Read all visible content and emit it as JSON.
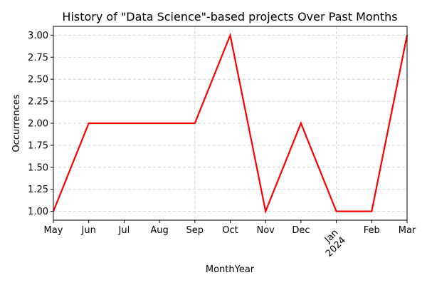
{
  "chart_data": {
    "type": "line",
    "title": "History of \"Data Science\"-based projects Over Past Months",
    "xlabel": "MonthYear",
    "ylabel": "Occurrences",
    "x": [
      "May",
      "Jun",
      "Jul",
      "Aug",
      "Sep",
      "Oct",
      "Nov",
      "Dec",
      "Jan 2024",
      "Feb",
      "Mar"
    ],
    "x_tick_labels": [
      {
        "lines": [
          "May"
        ]
      },
      {
        "lines": [
          "Jun"
        ]
      },
      {
        "lines": [
          "Jul"
        ]
      },
      {
        "lines": [
          "Aug"
        ]
      },
      {
        "lines": [
          "Sep"
        ]
      },
      {
        "lines": [
          "Oct"
        ]
      },
      {
        "lines": [
          "Nov"
        ]
      },
      {
        "lines": [
          "Dec"
        ]
      },
      {
        "lines": [
          "Jan",
          "2024"
        ],
        "rotated": true
      },
      {
        "lines": [
          "Feb"
        ]
      },
      {
        "lines": [
          "Mar"
        ]
      }
    ],
    "series": [
      {
        "values": [
          1,
          2,
          2,
          2,
          2,
          3,
          1,
          2,
          1,
          1,
          3
        ],
        "color": "#ff0000"
      }
    ],
    "ylim": [
      0.9,
      3.1
    ],
    "y_ticks": [
      "1.00",
      "1.25",
      "1.50",
      "1.75",
      "2.00",
      "2.25",
      "2.50",
      "2.75",
      "3.00"
    ],
    "grid": true
  }
}
